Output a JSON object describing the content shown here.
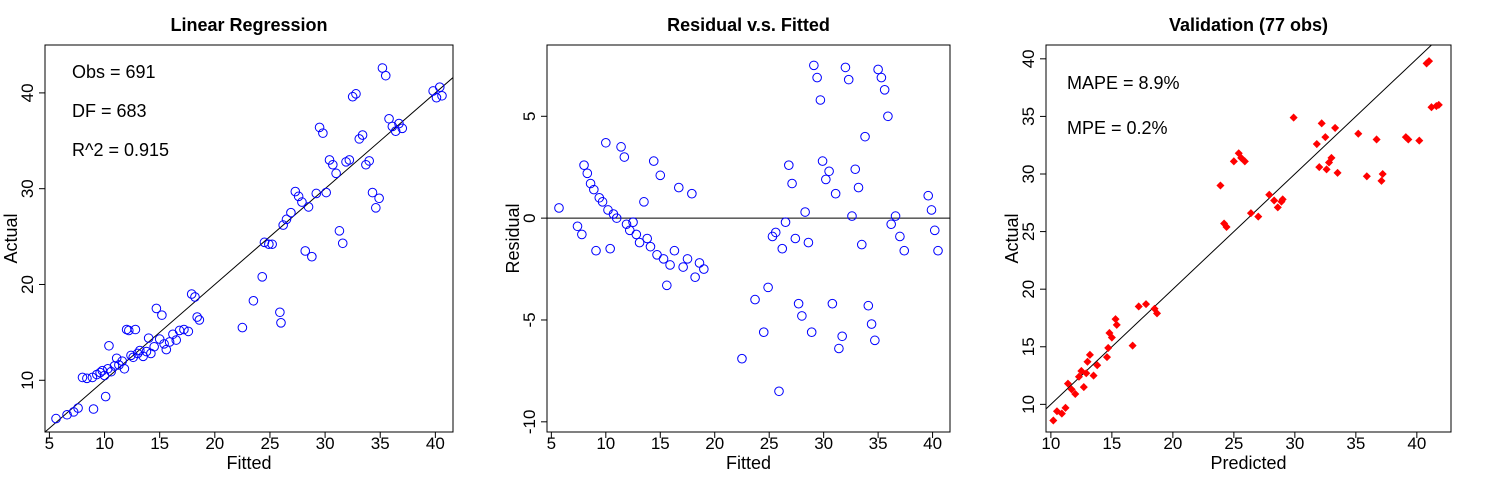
{
  "chart_data": [
    {
      "type": "scatter",
      "title": "Linear Regression",
      "xlabel": "Fitted",
      "ylabel": "Actual",
      "xlim": [
        4.6,
        41.6
      ],
      "ylim": [
        4.6,
        45.0
      ],
      "xticks": [
        5,
        10,
        15,
        20,
        25,
        30,
        35,
        40
      ],
      "yticks": [
        10,
        20,
        30,
        40
      ],
      "annotations": [
        "Obs = 691",
        "DF = 683",
        "R^2 = 0.915"
      ],
      "reference_line": {
        "kind": "identity"
      },
      "marker": "open-circle",
      "color": "#0000ff",
      "series": [
        {
          "points": [
            [
              5.6,
              6.0
            ],
            [
              6.6,
              6.4
            ],
            [
              7.2,
              6.7
            ],
            [
              7.6,
              7.1
            ],
            [
              8.0,
              10.3
            ],
            [
              8.4,
              10.2
            ],
            [
              8.9,
              10.3
            ],
            [
              9.0,
              7.0
            ],
            [
              9.3,
              10.6
            ],
            [
              9.6,
              10.8
            ],
            [
              9.8,
              11.0
            ],
            [
              10.0,
              10.5
            ],
            [
              10.1,
              8.3
            ],
            [
              10.3,
              11.2
            ],
            [
              10.4,
              13.6
            ],
            [
              10.6,
              10.9
            ],
            [
              10.9,
              11.5
            ],
            [
              11.1,
              12.3
            ],
            [
              11.3,
              11.6
            ],
            [
              11.6,
              12.0
            ],
            [
              11.8,
              11.2
            ],
            [
              12.0,
              15.3
            ],
            [
              12.2,
              15.2
            ],
            [
              12.4,
              12.6
            ],
            [
              12.6,
              12.4
            ],
            [
              12.8,
              15.3
            ],
            [
              13.0,
              12.8
            ],
            [
              13.2,
              13.1
            ],
            [
              13.5,
              12.5
            ],
            [
              13.8,
              13.0
            ],
            [
              14.0,
              14.4
            ],
            [
              14.2,
              12.8
            ],
            [
              14.5,
              13.5
            ],
            [
              14.7,
              17.5
            ],
            [
              15.0,
              14.3
            ],
            [
              15.2,
              16.8
            ],
            [
              15.4,
              13.8
            ],
            [
              15.6,
              13.2
            ],
            [
              15.9,
              14.0
            ],
            [
              16.2,
              14.8
            ],
            [
              16.5,
              14.2
            ],
            [
              16.8,
              15.2
            ],
            [
              17.2,
              15.3
            ],
            [
              17.6,
              15.1
            ],
            [
              17.9,
              19.0
            ],
            [
              18.2,
              18.7
            ],
            [
              18.4,
              16.6
            ],
            [
              18.6,
              16.3
            ],
            [
              22.5,
              15.5
            ],
            [
              23.5,
              18.3
            ],
            [
              24.3,
              20.8
            ],
            [
              24.5,
              24.4
            ],
            [
              24.9,
              24.2
            ],
            [
              25.2,
              24.2
            ],
            [
              25.9,
              17.1
            ],
            [
              26.0,
              16.0
            ],
            [
              26.2,
              26.2
            ],
            [
              26.5,
              26.8
            ],
            [
              26.9,
              27.5
            ],
            [
              27.3,
              29.7
            ],
            [
              27.6,
              29.2
            ],
            [
              27.9,
              28.6
            ],
            [
              28.2,
              23.5
            ],
            [
              28.5,
              28.1
            ],
            [
              28.8,
              22.9
            ],
            [
              29.2,
              29.5
            ],
            [
              29.5,
              36.4
            ],
            [
              29.8,
              35.8
            ],
            [
              30.1,
              29.6
            ],
            [
              30.4,
              33.0
            ],
            [
              30.7,
              32.5
            ],
            [
              31.0,
              31.6
            ],
            [
              31.3,
              25.6
            ],
            [
              31.6,
              24.3
            ],
            [
              31.9,
              32.8
            ],
            [
              32.2,
              33.0
            ],
            [
              32.5,
              39.6
            ],
            [
              32.8,
              39.9
            ],
            [
              33.1,
              35.2
            ],
            [
              33.4,
              35.6
            ],
            [
              33.7,
              32.5
            ],
            [
              34.0,
              32.9
            ],
            [
              34.3,
              29.6
            ],
            [
              34.6,
              28.0
            ],
            [
              34.9,
              29.0
            ],
            [
              35.2,
              42.6
            ],
            [
              35.5,
              41.8
            ],
            [
              35.8,
              37.3
            ],
            [
              36.1,
              36.5
            ],
            [
              36.4,
              36.0
            ],
            [
              36.7,
              36.8
            ],
            [
              37.0,
              36.3
            ],
            [
              39.8,
              40.2
            ],
            [
              40.1,
              39.5
            ],
            [
              40.4,
              40.6
            ],
            [
              40.6,
              39.7
            ]
          ]
        }
      ]
    },
    {
      "type": "scatter",
      "title": "Residual v.s. Fitted",
      "xlabel": "Fitted",
      "ylabel": "Residual",
      "xlim": [
        4.6,
        41.6
      ],
      "ylim": [
        -10.5,
        8.5
      ],
      "xticks": [
        5,
        10,
        15,
        20,
        25,
        30,
        35,
        40
      ],
      "yticks": [
        -10,
        -5,
        0,
        5
      ],
      "reference_line": {
        "kind": "horizontal",
        "y": 0
      },
      "marker": "open-circle",
      "color": "#0000ff",
      "series": [
        {
          "points": [
            [
              5.7,
              0.5
            ],
            [
              7.4,
              -0.4
            ],
            [
              7.8,
              -0.8
            ],
            [
              8.0,
              2.6
            ],
            [
              8.3,
              2.2
            ],
            [
              8.6,
              1.7
            ],
            [
              8.9,
              1.4
            ],
            [
              9.1,
              -1.6
            ],
            [
              9.4,
              1.0
            ],
            [
              9.7,
              0.8
            ],
            [
              10.0,
              3.7
            ],
            [
              10.2,
              0.4
            ],
            [
              10.4,
              -1.5
            ],
            [
              10.7,
              0.2
            ],
            [
              11.0,
              0.0
            ],
            [
              11.4,
              3.5
            ],
            [
              11.7,
              3.0
            ],
            [
              11.9,
              -0.3
            ],
            [
              12.2,
              -0.6
            ],
            [
              12.5,
              -0.2
            ],
            [
              12.8,
              -0.8
            ],
            [
              13.1,
              -1.2
            ],
            [
              13.5,
              0.8
            ],
            [
              13.8,
              -1.0
            ],
            [
              14.1,
              -1.4
            ],
            [
              14.4,
              2.8
            ],
            [
              14.7,
              -1.8
            ],
            [
              15.0,
              2.1
            ],
            [
              15.3,
              -2.0
            ],
            [
              15.6,
              -3.3
            ],
            [
              15.9,
              -2.3
            ],
            [
              16.3,
              -1.6
            ],
            [
              16.7,
              1.5
            ],
            [
              17.1,
              -2.4
            ],
            [
              17.5,
              -2.0
            ],
            [
              17.9,
              1.2
            ],
            [
              18.2,
              -2.9
            ],
            [
              18.6,
              -2.2
            ],
            [
              19.0,
              -2.5
            ],
            [
              22.5,
              -6.9
            ],
            [
              23.7,
              -4.0
            ],
            [
              24.5,
              -5.6
            ],
            [
              24.9,
              -3.4
            ],
            [
              25.3,
              -0.9
            ],
            [
              25.6,
              -0.7
            ],
            [
              25.9,
              -8.5
            ],
            [
              26.2,
              -1.5
            ],
            [
              26.5,
              -0.2
            ],
            [
              26.8,
              2.6
            ],
            [
              27.1,
              1.7
            ],
            [
              27.4,
              -1.0
            ],
            [
              27.7,
              -4.2
            ],
            [
              28.0,
              -4.8
            ],
            [
              28.3,
              0.3
            ],
            [
              28.6,
              -1.2
            ],
            [
              28.9,
              -5.6
            ],
            [
              29.1,
              7.5
            ],
            [
              29.4,
              6.9
            ],
            [
              29.7,
              5.8
            ],
            [
              29.9,
              2.8
            ],
            [
              30.2,
              1.9
            ],
            [
              30.5,
              2.3
            ],
            [
              30.8,
              -4.2
            ],
            [
              31.1,
              1.2
            ],
            [
              31.4,
              -6.4
            ],
            [
              31.7,
              -5.8
            ],
            [
              32.0,
              7.4
            ],
            [
              32.3,
              6.8
            ],
            [
              32.6,
              0.1
            ],
            [
              32.9,
              2.4
            ],
            [
              33.2,
              1.5
            ],
            [
              33.5,
              -1.3
            ],
            [
              33.8,
              4.0
            ],
            [
              34.1,
              -4.3
            ],
            [
              34.4,
              -5.2
            ],
            [
              34.7,
              -6.0
            ],
            [
              35.0,
              7.3
            ],
            [
              35.3,
              6.9
            ],
            [
              35.6,
              6.3
            ],
            [
              35.9,
              5.0
            ],
            [
              36.2,
              -0.3
            ],
            [
              36.6,
              0.1
            ],
            [
              37.0,
              -0.9
            ],
            [
              37.4,
              -1.6
            ],
            [
              39.6,
              1.1
            ],
            [
              39.9,
              0.4
            ],
            [
              40.2,
              -0.6
            ],
            [
              40.5,
              -1.6
            ]
          ]
        }
      ]
    },
    {
      "type": "scatter",
      "title": "Validation (77 obs)",
      "xlabel": "Predicted",
      "ylabel": "Actual",
      "xlim": [
        9.6,
        42.8
      ],
      "ylim": [
        7.6,
        41.2
      ],
      "xticks": [
        10,
        15,
        20,
        25,
        30,
        35,
        40
      ],
      "yticks": [
        10,
        15,
        20,
        25,
        30,
        35,
        40
      ],
      "annotations": [
        "MAPE = 8.9%",
        "MPE = 0.2%"
      ],
      "reference_line": {
        "kind": "identity"
      },
      "marker": "filled-diamond",
      "color": "#ff0000",
      "series": [
        {
          "points": [
            [
              10.2,
              8.6
            ],
            [
              10.5,
              9.4
            ],
            [
              10.9,
              9.2
            ],
            [
              11.2,
              9.7
            ],
            [
              11.4,
              11.8
            ],
            [
              11.7,
              11.3
            ],
            [
              12.0,
              10.9
            ],
            [
              12.3,
              12.4
            ],
            [
              12.5,
              12.9
            ],
            [
              12.7,
              11.5
            ],
            [
              12.9,
              12.7
            ],
            [
              13.0,
              13.7
            ],
            [
              13.2,
              14.3
            ],
            [
              13.5,
              12.5
            ],
            [
              13.8,
              13.4
            ],
            [
              14.6,
              14.1
            ],
            [
              14.7,
              14.9
            ],
            [
              14.8,
              16.2
            ],
            [
              15.0,
              15.8
            ],
            [
              15.3,
              17.4
            ],
            [
              15.4,
              16.9
            ],
            [
              16.7,
              15.1
            ],
            [
              17.2,
              18.5
            ],
            [
              17.8,
              18.7
            ],
            [
              18.5,
              18.3
            ],
            [
              18.7,
              17.9
            ],
            [
              23.9,
              29.0
            ],
            [
              24.2,
              25.7
            ],
            [
              24.4,
              25.4
            ],
            [
              25.0,
              31.1
            ],
            [
              25.4,
              31.8
            ],
            [
              25.6,
              31.4
            ],
            [
              25.9,
              31.1
            ],
            [
              26.4,
              26.6
            ],
            [
              27.0,
              26.3
            ],
            [
              27.9,
              28.2
            ],
            [
              28.3,
              27.7
            ],
            [
              28.6,
              27.1
            ],
            [
              28.9,
              27.6
            ],
            [
              29.0,
              27.8
            ],
            [
              29.9,
              34.9
            ],
            [
              31.8,
              32.6
            ],
            [
              32.0,
              30.6
            ],
            [
              32.2,
              34.4
            ],
            [
              32.5,
              33.2
            ],
            [
              32.6,
              30.4
            ],
            [
              32.8,
              31.0
            ],
            [
              33.0,
              31.4
            ],
            [
              33.3,
              34.0
            ],
            [
              33.5,
              30.1
            ],
            [
              35.2,
              33.5
            ],
            [
              35.9,
              29.8
            ],
            [
              36.7,
              33.0
            ],
            [
              37.1,
              29.4
            ],
            [
              37.2,
              30.0
            ],
            [
              39.1,
              33.2
            ],
            [
              39.3,
              33.0
            ],
            [
              40.2,
              32.9
            ],
            [
              40.8,
              39.6
            ],
            [
              41.0,
              39.8
            ],
            [
              41.2,
              35.8
            ],
            [
              41.6,
              35.9
            ],
            [
              41.8,
              36.0
            ]
          ]
        }
      ]
    }
  ]
}
